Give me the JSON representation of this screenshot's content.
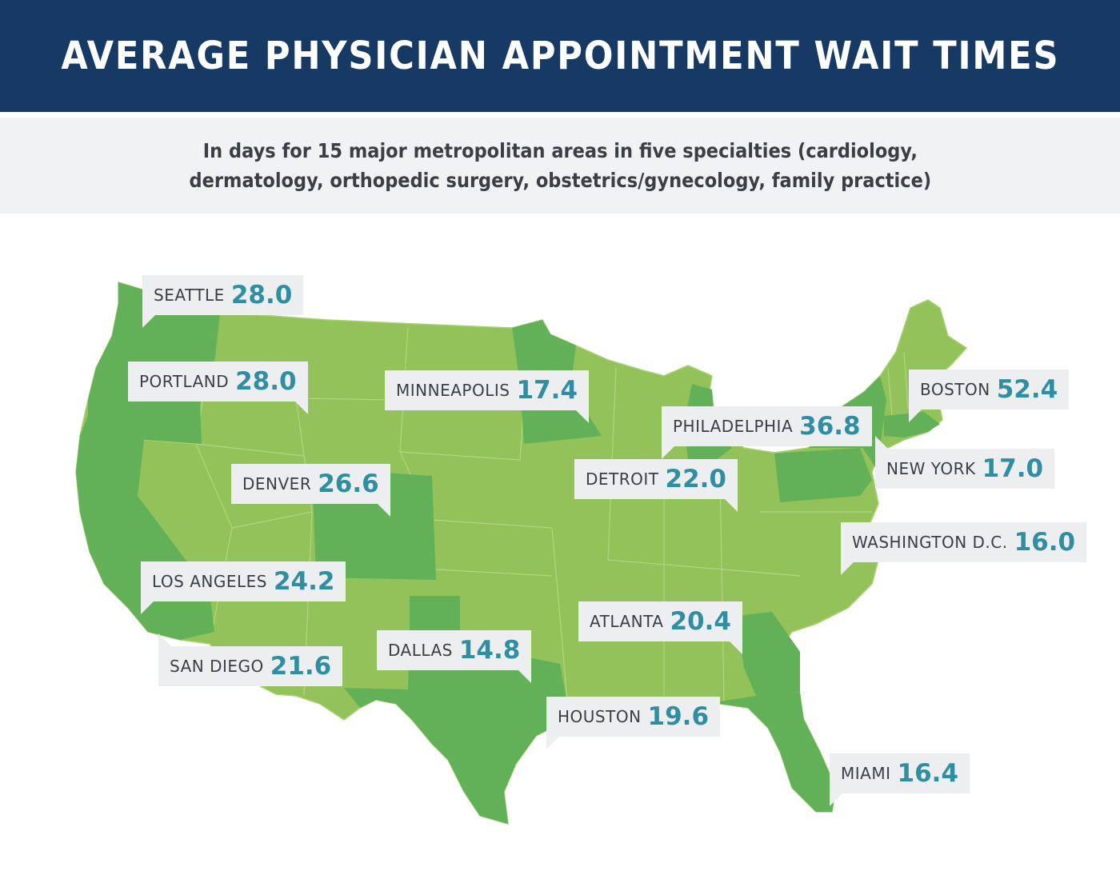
{
  "title": "AVERAGE PHYSICIAN APPOINTMENT WAIT TIMES",
  "subtitle_line1": "In days for 15 major metropolitan areas in five specialties (cardiology,",
  "subtitle_line2": "dermatology, orthopedic surgery, obstetrics/gynecology, family practice)",
  "colors": {
    "header_bg": "#163a63",
    "base_state": "#93c25a",
    "highlight_state": "#62b158",
    "value_text": "#2f8ea1",
    "callout_bg": "#eceeef"
  },
  "cities": [
    {
      "name": "SEATTLE",
      "value": "28.0"
    },
    {
      "name": "PORTLAND",
      "value": "28.0"
    },
    {
      "name": "MINNEAPOLIS",
      "value": "17.4"
    },
    {
      "name": "BOSTON",
      "value": "52.4"
    },
    {
      "name": "PHILADELPHIA",
      "value": "36.8"
    },
    {
      "name": "NEW YORK",
      "value": "17.0"
    },
    {
      "name": "DETROIT",
      "value": "22.0"
    },
    {
      "name": "DENVER",
      "value": "26.6"
    },
    {
      "name": "WASHINGTON D.C.",
      "value": "16.0"
    },
    {
      "name": "LOS ANGELES",
      "value": "24.2"
    },
    {
      "name": "ATLANTA",
      "value": "20.4"
    },
    {
      "name": "DALLAS",
      "value": "14.8"
    },
    {
      "name": "SAN DIEGO",
      "value": "21.6"
    },
    {
      "name": "HOUSTON",
      "value": "19.6"
    },
    {
      "name": "MIAMI",
      "value": "16.4"
    }
  ]
}
